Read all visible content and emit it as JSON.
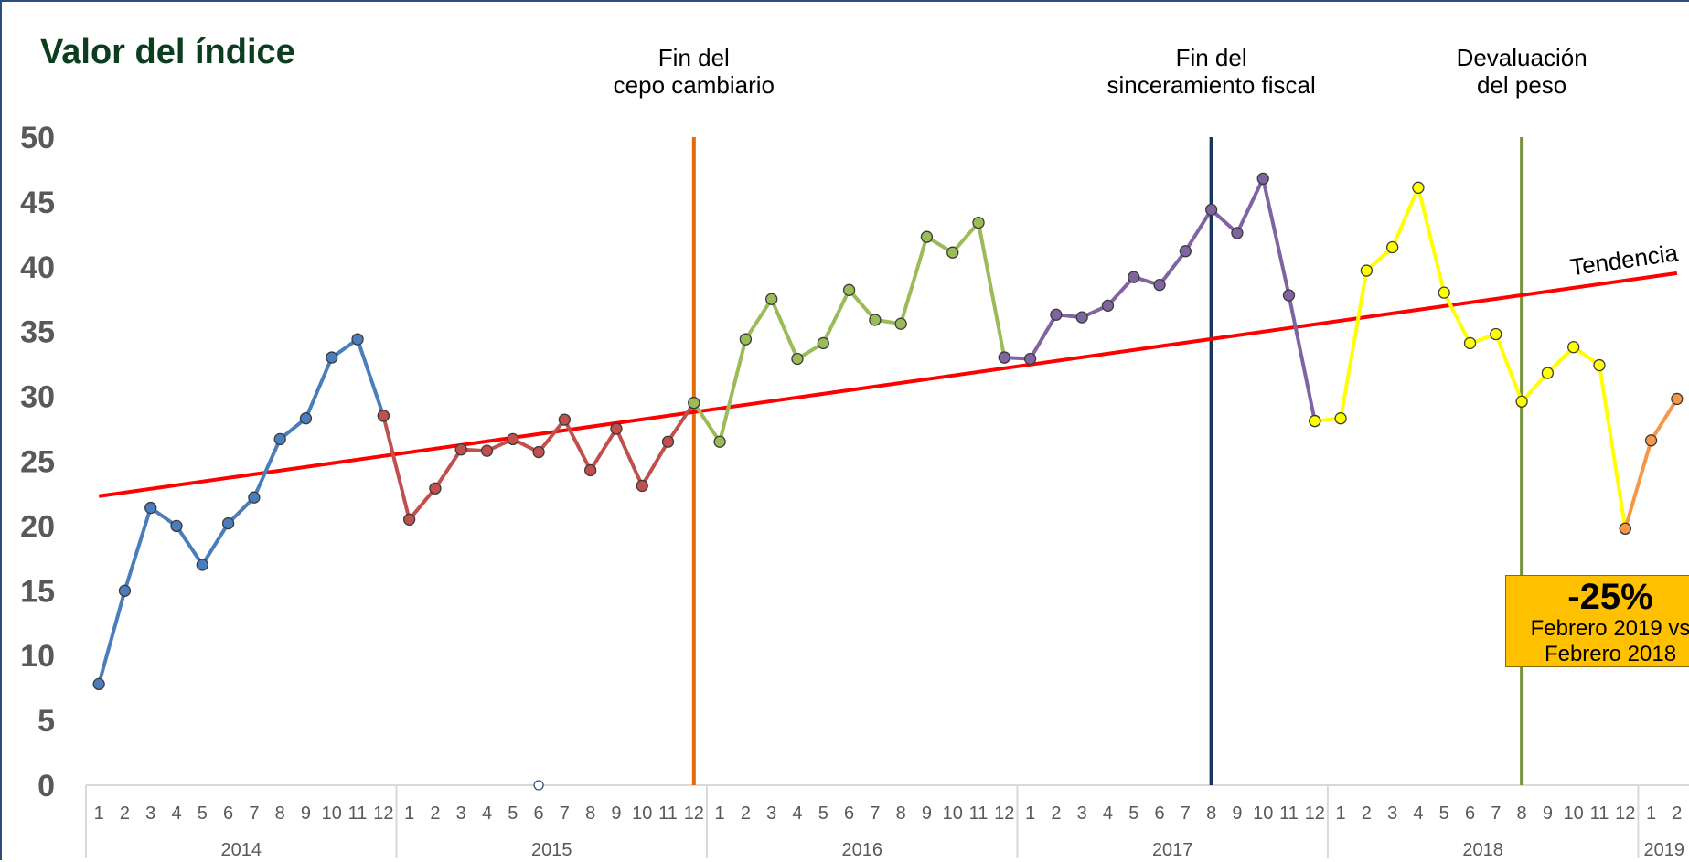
{
  "chart_data": {
    "type": "line",
    "title": "Valor del índice",
    "ylim": [
      0,
      50
    ],
    "yticks": [
      0,
      5,
      10,
      15,
      20,
      25,
      30,
      35,
      40,
      45,
      50
    ],
    "grid": false,
    "years": [
      {
        "label": "2014",
        "months": 12
      },
      {
        "label": "2015",
        "months": 12
      },
      {
        "label": "2016",
        "months": 12
      },
      {
        "label": "2017",
        "months": 12
      },
      {
        "label": "2018",
        "months": 12
      },
      {
        "label": "2019",
        "months": 2
      }
    ],
    "month_labels": [
      "1",
      "2",
      "3",
      "4",
      "5",
      "6",
      "7",
      "8",
      "9",
      "10",
      "11",
      "12"
    ],
    "series": [
      {
        "color": "#4a7ebb",
        "start_index": 0,
        "values": [
          7.8,
          15.0,
          21.4,
          20.0,
          17.0,
          20.2,
          22.2,
          26.7,
          28.3,
          33.0,
          34.4,
          28.5
        ]
      },
      {
        "color": "#c0504d",
        "start_index": 11,
        "values": [
          28.5,
          20.5,
          22.9,
          25.9,
          25.8,
          26.7,
          25.7,
          28.2,
          24.3,
          27.5,
          23.1,
          26.5,
          29.5
        ]
      },
      {
        "color": "#9bbb59",
        "start_index": 23,
        "values": [
          29.5,
          26.5,
          34.4,
          37.5,
          32.9,
          34.1,
          38.2,
          35.9,
          35.6,
          42.3,
          41.1,
          43.4,
          33.0
        ]
      },
      {
        "color": "#8064a2",
        "start_index": 35,
        "values": [
          33.0,
          32.9,
          36.3,
          36.1,
          37.0,
          39.2,
          38.6,
          41.2,
          44.4,
          42.6,
          46.8,
          37.8,
          28.1
        ]
      },
      {
        "color": "#ffff00",
        "start_index": 47,
        "values": [
          28.1,
          28.3,
          39.7,
          41.5,
          46.1,
          38.0,
          34.1,
          34.8,
          29.6,
          31.8,
          33.8,
          32.4,
          19.8
        ]
      },
      {
        "color": "#f79646",
        "start_index": 59,
        "values": [
          19.8,
          26.6,
          29.8
        ]
      }
    ],
    "trend": {
      "label": "Tendencia",
      "color": "#ff0000",
      "start": 22.3,
      "end": 39.5
    },
    "events": [
      {
        "label_lines": [
          "Fin del",
          "cepo cambiario"
        ],
        "index": 23,
        "color": "#e36c09"
      },
      {
        "label_lines": [
          "Fin del",
          "sinceramiento fiscal"
        ],
        "index": 43,
        "color": "#17375e"
      },
      {
        "label_lines": [
          "Devaluación",
          "del peso"
        ],
        "index": 55,
        "color": "#77933c"
      }
    ],
    "stray_point": {
      "index": 17,
      "value": 0
    },
    "callout": {
      "headline": "-25%",
      "line1": "Febrero 2019 vs",
      "line2": "Febrero 2018"
    }
  }
}
